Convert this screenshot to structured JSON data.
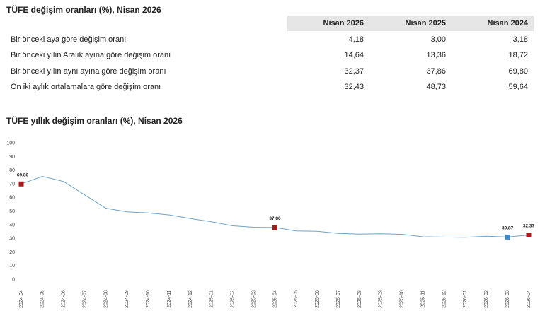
{
  "table_title": "TÜFE değişim oranları (%), Nisan 2026",
  "table": {
    "headers": [
      "",
      "Nisan 2026",
      "Nisan 2025",
      "Nisan 2024"
    ],
    "rows": [
      {
        "label": "Bir önceki aya göre değişim oranı",
        "v1": "4,18",
        "v2": "3,00",
        "v3": "3,18"
      },
      {
        "label": "Bir önceki yılın Aralık ayına göre değişim oranı",
        "v1": "14,64",
        "v2": "13,36",
        "v3": "18,72"
      },
      {
        "label": "Bir önceki yılın aynı ayına göre değişim oranı",
        "v1": "32,37",
        "v2": "37,86",
        "v3": "69,80"
      },
      {
        "label": "On iki aylık ortalamalara göre değişim oranı",
        "v1": "32,43",
        "v2": "48,73",
        "v3": "59,64"
      }
    ]
  },
  "chart_title": "TÜFE yıllık değişim oranları (%), Nisan 2026",
  "chart_data": {
    "type": "line",
    "x": [
      "2024-04",
      "2024-05",
      "2024-06",
      "2024-07",
      "2024-08",
      "2024-09",
      "2024-10",
      "2024-11",
      "2024-12",
      "2025-01",
      "2025-02",
      "2025-03",
      "2025-04",
      "2025-05",
      "2025-06",
      "2025-07",
      "2025-08",
      "2025-09",
      "2025-10",
      "2025-11",
      "2025-12",
      "2026-01",
      "2026-02",
      "2026-03",
      "2026-04"
    ],
    "values": [
      69.8,
      75.4,
      71.6,
      61.8,
      52.0,
      49.4,
      48.6,
      47.1,
      44.4,
      42.1,
      39.1,
      38.1,
      37.86,
      35.4,
      35.1,
      33.5,
      33.0,
      33.3,
      32.9,
      31.1,
      30.9,
      30.7,
      31.5,
      30.87,
      32.37
    ],
    "ylim": [
      0,
      100
    ],
    "yticks": [
      0,
      10,
      20,
      30,
      40,
      50,
      60,
      70,
      80,
      90,
      100
    ],
    "line_color": "#6fa3c8",
    "markers": [
      {
        "index": 0,
        "label": "69,80",
        "color": "#a61c1c",
        "shape": "square"
      },
      {
        "index": 12,
        "label": "37,86",
        "color": "#a61c1c",
        "shape": "square"
      },
      {
        "index": 23,
        "label": "30,87",
        "color": "#3f88c5",
        "shape": "square"
      },
      {
        "index": 24,
        "label": "32,37",
        "color": "#a61c1c",
        "shape": "square"
      }
    ],
    "grid": false
  }
}
